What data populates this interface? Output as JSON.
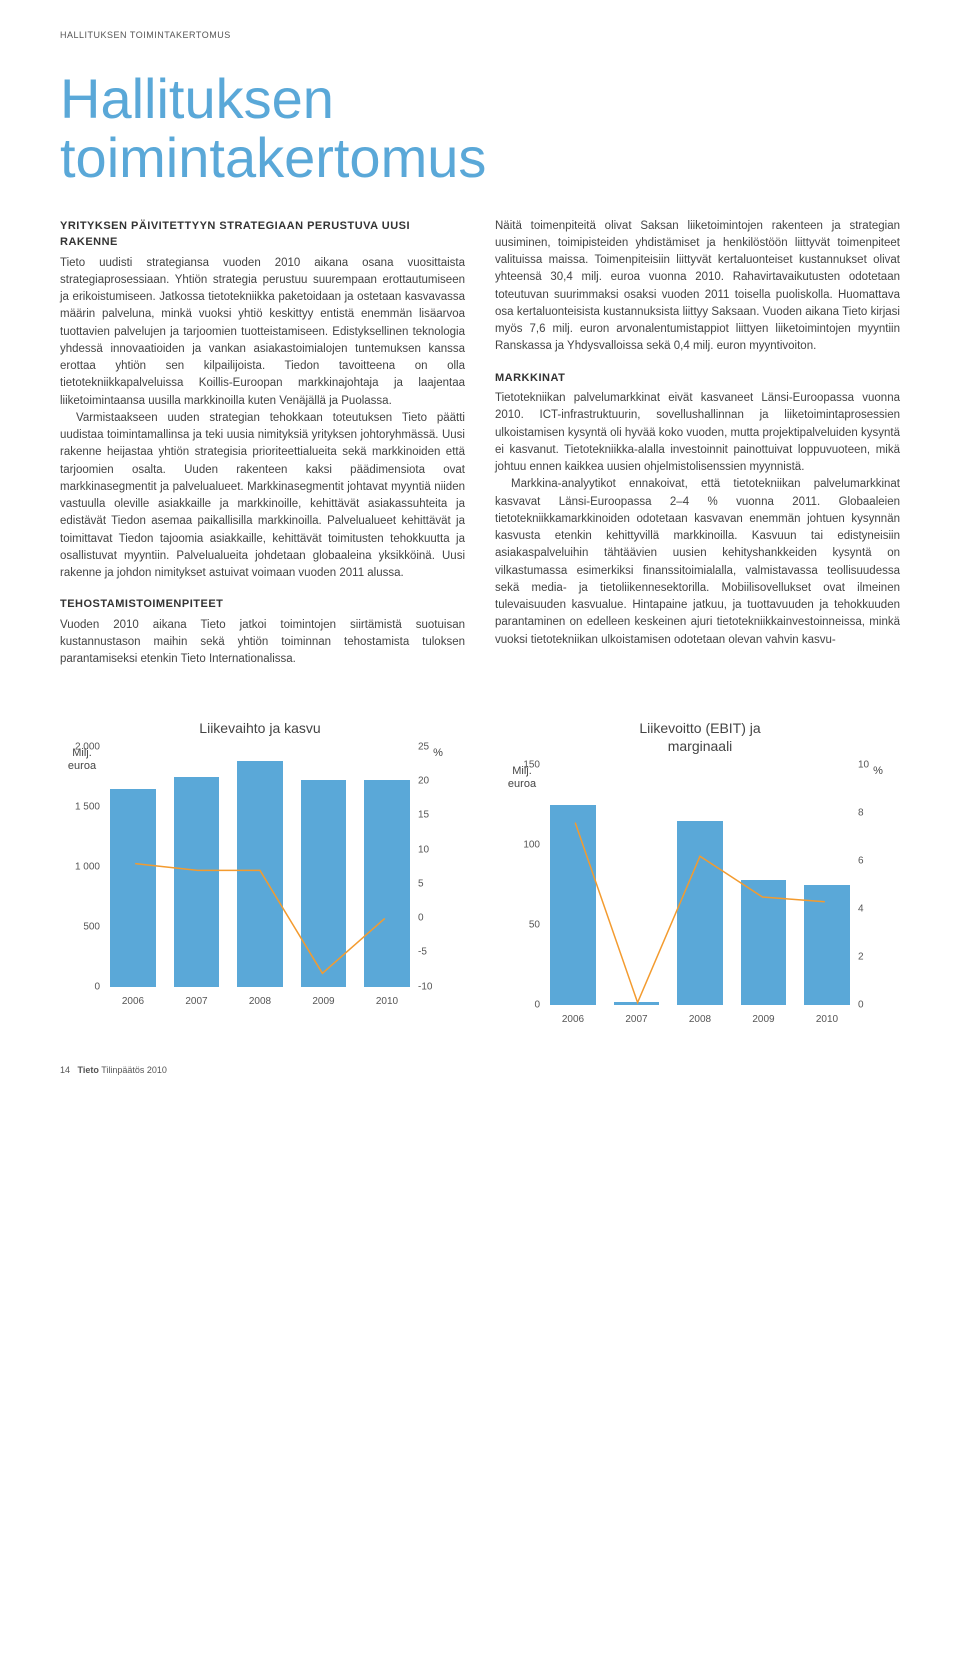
{
  "header_small": "HALLITUKSEN TOIMINTAKERTOMUS",
  "main_title": "Hallituksen\ntoimintakertomus",
  "left": {
    "h1": "YRITYKSEN PÄIVITETTYYN STRATEGIAAN PERUSTUVA UUSI RAKENNE",
    "p1": "Tieto uudisti strategiansa vuoden 2010 aikana osana vuosittaista strategiaprosessiaan. Yhtiön strategia perustuu suurempaan erottautumiseen ja erikoistumiseen. Jatkossa tietotekniikka paketoidaan ja ostetaan kasvavassa määrin palveluna, minkä vuoksi yhtiö keskittyy entistä enemmän lisäarvoa tuottavien palvelujen ja tarjoomien tuotteistamiseen. Edistyksellinen teknologia yhdessä innovaatioiden ja vankan asiakastoimialojen tuntemuksen kanssa erottaa yhtiön sen kilpailijoista. Tiedon tavoitteena on olla tietotekniikkapalveluissa Koillis-Euroopan markkinajohtaja ja laajentaa liiketoimintaansa uusilla markkinoilla kuten Venäjällä ja Puolassa.",
    "p2": "Varmistaakseen uuden strategian tehokkaan toteutuksen Tieto päätti uudistaa toimintamallinsa ja teki uusia nimityksiä yrityksen johtoryhmässä. Uusi rakenne heijastaa yhtiön strategisia prioriteettialueita sekä markkinoiden että tarjoomien osalta. Uuden rakenteen kaksi päädimensiota ovat markkinasegmentit ja palvelualueet. Markkinasegmentit johtavat myyntiä niiden vastuulla oleville asiakkaille ja markkinoille, kehittävät asiakassuhteita ja edistävät Tiedon asemaa paikallisilla markkinoilla. Palvelualueet kehittävät ja toimittavat Tiedon tajoomia asiakkaille, kehittävät toimitusten tehokkuutta ja osallistuvat myyntiin. Palvelualueita johdetaan globaaleina yksikköinä. Uusi rakenne ja johdon nimitykset astuivat voimaan vuoden 2011 alussa.",
    "h2": "TEHOSTAMISTOIMENPITEET",
    "p3": "Vuoden 2010 aikana Tieto jatkoi toimintojen siirtämistä suotuisan kustannustason maihin sekä yhtiön toiminnan tehostamista tuloksen parantamiseksi etenkin Tieto Internationalissa."
  },
  "right": {
    "p1": "Näitä toimenpiteitä olivat Saksan liiketoimintojen rakenteen ja strategian uusiminen, toimipisteiden yhdistämiset ja henkilöstöön liittyvät toimenpiteet valituissa maissa. Toimenpiteisiin liittyvät kertaluonteiset kustannukset olivat yhteensä 30,4 milj. euroa vuonna 2010. Rahavirtavaikutusten odotetaan toteutuvan suurimmaksi osaksi vuoden 2011 toisella puoliskolla. Huomattava osa kertaluonteisista kustannuksista liittyy Saksaan. Vuoden aikana Tieto kirjasi myös 7,6 milj. euron arvonalentumistappiot liittyen liiketoimintojen myyntiin Ranskassa ja Yhdysvalloissa sekä 0,4 milj. euron myyntivoiton.",
    "h1": "MARKKINAT",
    "p2": "Tietotekniikan palvelumarkkinat eivät kasvaneet Länsi-Euroopassa vuonna 2010. ICT-infrastruktuurin, sovellushallinnan ja liiketoimintaprosessien ulkoistamisen kysyntä oli hyvää koko vuoden, mutta projektipalveluiden kysyntä ei kasvanut. Tietotekniikka-alalla investoinnit painottuivat loppuvuoteen, mikä johtuu ennen kaikkea uusien ohjelmistolisenssien myynnistä.",
    "p3": "Markkina-analyytikot ennakoivat, että tietotekniikan palvelumarkkinat kasvavat Länsi-Euroopassa 2–4 % vuonna 2011. Globaaleien tietotekniikkamarkkinoiden odotetaan kasvavan enemmän johtuen kysynnän kasvusta etenkin kehittyvillä markkinoilla. Kasvuun tai edistyneisiin asiakaspalveluihin tähtäävien uusien kehityshankkeiden kysyntä on vilkastumassa esimerkiksi finanssitoimialalla, valmistavassa teollisuudessa sekä media- ja tietoliikennesektorilla. Mobiilisovellukset ovat ilmeinen tulevaisuuden kasvualue. Hintapaine jatkuu, ja tuottavuuden ja tehokkuuden parantaminen on edelleen keskeinen ajuri tietotekniikkainvestoinneissa, minkä vuoksi tietotekniikan ulkoistamisen odotetaan olevan vahvin kasvu-"
  },
  "chart1": {
    "title": "Liikevaihto ja kasvu",
    "left_axis_label": "Milj.\neuroa",
    "right_axis_label": "%",
    "categories": [
      "2006",
      "2007",
      "2008",
      "2009",
      "2010"
    ],
    "bar_values": [
      1650,
      1750,
      1880,
      1720,
      1720
    ],
    "bar_ylim": [
      0,
      2000
    ],
    "bar_ticks": [
      0,
      500,
      1000,
      1500,
      2000
    ],
    "line_values": [
      8,
      7,
      7,
      -8,
      0
    ],
    "line_ylim": [
      -10,
      25
    ],
    "line_ticks": [
      -10,
      -5,
      0,
      5,
      10,
      15,
      20,
      25
    ],
    "bar_color": "#5aa8d8",
    "line_color": "#f39b2f",
    "line_width": 3
  },
  "chart2": {
    "title": "Liikevoitto (EBIT) ja\nmarginaali",
    "left_axis_label": "Milj.\neuroa",
    "right_axis_label": "%",
    "categories": [
      "2006",
      "2007",
      "2008",
      "2009",
      "2010"
    ],
    "bar_values": [
      125,
      2,
      115,
      78,
      75
    ],
    "bar_ylim": [
      0,
      150
    ],
    "bar_ticks": [
      0,
      50,
      100,
      150
    ],
    "line_values": [
      7.6,
      0.1,
      6.2,
      4.5,
      4.3
    ],
    "line_ylim": [
      0,
      10
    ],
    "line_ticks": [
      0,
      2,
      4,
      6,
      8,
      10
    ],
    "bar_color": "#5aa8d8",
    "line_color": "#f39b2f",
    "line_width": 3
  },
  "footer": {
    "page": "14",
    "brand": "Tieto",
    "doc": "Tilinpäätös 2010"
  }
}
